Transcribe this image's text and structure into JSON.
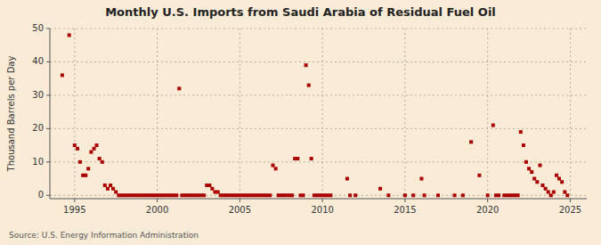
{
  "chart_data": {
    "type": "scatter",
    "title": "Monthly U.S. Imports from Saudi Arabia of Residual Fuel Oil",
    "ylabel": "Thousand Barrels per Day",
    "annotations": [
      "Source: U.S. Energy Information Administration"
    ],
    "color": "#aa0000",
    "marker": "square",
    "grid": true,
    "xlim": [
      1993.5,
      2026
    ],
    "ylim": [
      -1,
      50
    ],
    "xticks": [
      1995,
      2000,
      2005,
      2010,
      2015,
      2020,
      2025
    ],
    "yticks": [
      0,
      10,
      20,
      30,
      40,
      50
    ],
    "x": [
      1994.25,
      1994.67,
      1995.0,
      1995.17,
      1995.33,
      1995.5,
      1995.67,
      1995.83,
      1996.0,
      1996.17,
      1996.33,
      1996.5,
      1996.67,
      1996.83,
      1997.0,
      1997.17,
      1997.33,
      1997.5,
      1997.67,
      1997.83,
      1998.0,
      1998.17,
      1998.33,
      1998.5,
      1998.67,
      1998.83,
      1999.0,
      1999.17,
      1999.33,
      1999.5,
      1999.67,
      1999.83,
      2000.0,
      2000.17,
      2000.33,
      2000.5,
      2000.67,
      2000.83,
      2001.0,
      2001.17,
      2001.33,
      2001.5,
      2001.67,
      2001.83,
      2002.0,
      2002.17,
      2002.33,
      2002.5,
      2002.67,
      2002.83,
      2003.0,
      2003.17,
      2003.33,
      2003.5,
      2003.67,
      2003.83,
      2004.0,
      2004.17,
      2004.33,
      2004.5,
      2004.67,
      2004.83,
      2005.0,
      2005.17,
      2005.33,
      2005.5,
      2005.67,
      2005.83,
      2006.0,
      2006.17,
      2006.33,
      2006.5,
      2006.67,
      2006.83,
      2007.0,
      2007.17,
      2007.33,
      2007.5,
      2007.67,
      2007.83,
      2008.0,
      2008.17,
      2008.33,
      2008.5,
      2008.67,
      2008.83,
      2009.0,
      2009.17,
      2009.33,
      2009.5,
      2009.67,
      2009.83,
      2010.0,
      2010.17,
      2010.33,
      2010.5,
      2011.5,
      2011.67,
      2012.0,
      2013.5,
      2014.0,
      2015.0,
      2015.5,
      2016.0,
      2016.17,
      2017.0,
      2018.0,
      2018.5,
      2019.0,
      2019.5,
      2020.0,
      2020.33,
      2020.5,
      2020.67,
      2021.0,
      2021.17,
      2021.33,
      2021.5,
      2021.67,
      2021.83,
      2022.0,
      2022.17,
      2022.33,
      2022.5,
      2022.67,
      2022.83,
      2023.0,
      2023.17,
      2023.33,
      2023.5,
      2023.67,
      2023.83,
      2024.0,
      2024.17,
      2024.33,
      2024.5,
      2024.67,
      2024.83
    ],
    "values": [
      36,
      48,
      15,
      14,
      10,
      6,
      6,
      8,
      13,
      14,
      15,
      11,
      10,
      3,
      2,
      3,
      2,
      1,
      0,
      0,
      0,
      0,
      0,
      0,
      0,
      0,
      0,
      0,
      0,
      0,
      0,
      0,
      0,
      0,
      0,
      0,
      0,
      0,
      0,
      0,
      32,
      0,
      0,
      0,
      0,
      0,
      0,
      0,
      0,
      0,
      3,
      3,
      2,
      1,
      1,
      0,
      0,
      0,
      0,
      0,
      0,
      0,
      0,
      0,
      0,
      0,
      0,
      0,
      0,
      0,
      0,
      0,
      0,
      0,
      9,
      8,
      0,
      0,
      0,
      0,
      0,
      0,
      11,
      11,
      0,
      0,
      39,
      33,
      11,
      0,
      0,
      0,
      0,
      0,
      0,
      0,
      5,
      0,
      0,
      2,
      0,
      0,
      0,
      5,
      0,
      0,
      0,
      0,
      16,
      6,
      0,
      21,
      0,
      0,
      0,
      0,
      0,
      0,
      0,
      0,
      19,
      15,
      10,
      8,
      7,
      5,
      4,
      9,
      3,
      2,
      1,
      0,
      1,
      6,
      5,
      4,
      1,
      0
    ]
  }
}
